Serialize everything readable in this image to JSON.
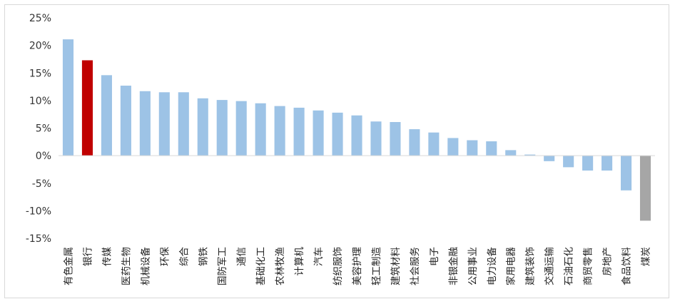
{
  "chart_data": {
    "type": "bar",
    "title": "",
    "xlabel": "",
    "ylabel": "",
    "ylim": [
      -15,
      25
    ],
    "yticks": [
      25,
      20,
      15,
      10,
      5,
      0,
      -5,
      -10,
      -15
    ],
    "ytick_labels": [
      "25%",
      "20%",
      "15%",
      "10%",
      "5%",
      "0%",
      "-5%",
      "-10%",
      "-15%"
    ],
    "grid": false,
    "legend": "none",
    "colors": {
      "default": "#9dc3e6",
      "highlight": "#c00000",
      "negative_last": "#a6a6a6",
      "axis": "#d9d9d9"
    },
    "categories": [
      "有色金属",
      "银行",
      "传媒",
      "医药生物",
      "机械设备",
      "环保",
      "综合",
      "钢铁",
      "国防军工",
      "通信",
      "基础化工",
      "农林牧渔",
      "计算机",
      "汽车",
      "纺织服饰",
      "美容护理",
      "轻工制造",
      "建筑材料",
      "社会服务",
      "电子",
      "非银金融",
      "公用事业",
      "电力设备",
      "家用电器",
      "建筑装饰",
      "交通运输",
      "石油石化",
      "商贸零售",
      "房地产",
      "食品饮料",
      "煤炭"
    ],
    "values": [
      21.1,
      17.3,
      14.6,
      12.7,
      11.7,
      11.5,
      11.5,
      10.4,
      10.1,
      9.9,
      9.5,
      9.0,
      8.7,
      8.2,
      7.8,
      7.3,
      6.2,
      6.1,
      4.8,
      4.2,
      3.2,
      2.8,
      2.6,
      1.0,
      0.2,
      -1.0,
      -2.1,
      -2.7,
      -2.7,
      -6.3,
      -11.8
    ],
    "highlight_index": 1,
    "gray_index": 30
  }
}
